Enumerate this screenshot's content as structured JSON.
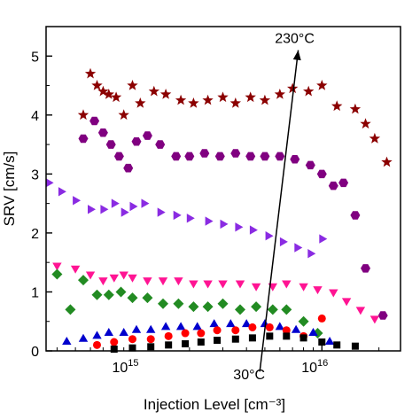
{
  "chart_data": {
    "type": "scatter",
    "xlabel": "Injection Level [cm⁻³]",
    "ylabel": "SRV [cm/s]",
    "xscale": "log",
    "xlim": [
      350000000000000.0,
      2.6e+16
    ],
    "ylim": [
      0,
      5.5
    ],
    "grid": false,
    "legend": "none",
    "x_ticks": [
      {
        "value": 1000000000000000.0,
        "label_base": "10",
        "label_exp": "15"
      },
      {
        "value": 1e+16,
        "label_base": "10",
        "label_exp": "16"
      }
    ],
    "y_ticks": [
      0,
      1,
      2,
      3,
      4,
      5
    ],
    "annotations": {
      "high": "230°C",
      "low": "30°C",
      "arrow_from": {
        "x": 4700000000000000.0,
        "y": -0.35
      },
      "arrow_to": {
        "x": 7500000000000000.0,
        "y": 5.1
      }
    },
    "series": [
      {
        "marker": "star",
        "color": "#8b0000",
        "x": [
          550000000000000.0,
          600000000000000.0,
          650000000000000.0,
          700000000000000.0,
          750000000000000.0,
          820000000000000.0,
          900000000000000.0,
          1000000000000000.0,
          1100000000000000.0,
          1300000000000000.0,
          1500000000000000.0,
          1800000000000000.0,
          2100000000000000.0,
          2500000000000000.0,
          3000000000000000.0,
          3500000000000000.0,
          4200000000000000.0,
          5000000000000000.0,
          6000000000000000.0,
          7000000000000000.0,
          8500000000000000.0,
          1e+16,
          1.2e+16,
          1.5e+16,
          1.7e+16,
          1.9e+16,
          2.2e+16
        ],
        "y": [
          4.0,
          4.7,
          4.5,
          4.4,
          4.35,
          4.3,
          4.0,
          4.5,
          4.2,
          4.4,
          4.35,
          4.25,
          4.2,
          4.25,
          4.3,
          4.2,
          4.3,
          4.25,
          4.35,
          4.45,
          4.4,
          4.5,
          4.15,
          4.1,
          3.85,
          3.6,
          3.2
        ]
      },
      {
        "marker": "hexagon",
        "color": "#800080",
        "x": [
          550000000000000.0,
          630000000000000.0,
          700000000000000.0,
          770000000000000.0,
          850000000000000.0,
          950000000000000.0,
          1050000000000000.0,
          1200000000000000.0,
          1400000000000000.0,
          1700000000000000.0,
          2000000000000000.0,
          2400000000000000.0,
          2900000000000000.0,
          3500000000000000.0,
          4200000000000000.0,
          5000000000000000.0,
          6000000000000000.0,
          7200000000000000.0,
          8700000000000000.0,
          1e+16,
          1.15e+16,
          1.3e+16,
          1.5e+16,
          1.7e+16,
          2.1e+16
        ],
        "y": [
          3.6,
          3.9,
          3.7,
          3.5,
          3.3,
          3.1,
          3.55,
          3.65,
          3.5,
          3.3,
          3.3,
          3.35,
          3.3,
          3.35,
          3.3,
          3.3,
          3.3,
          3.25,
          3.15,
          3.0,
          2.8,
          2.85,
          2.3,
          1.4,
          0.6
        ]
      },
      {
        "marker": "triangle-right",
        "color": "#8a2be2",
        "x": [
          360000000000000.0,
          420000000000000.0,
          500000000000000.0,
          600000000000000.0,
          700000000000000.0,
          800000000000000.0,
          900000000000000.0,
          1000000000000000.0,
          1150000000000000.0,
          1400000000000000.0,
          1700000000000000.0,
          2000000000000000.0,
          2500000000000000.0,
          3000000000000000.0,
          3600000000000000.0,
          4300000000000000.0,
          5200000000000000.0,
          6200000000000000.0,
          7400000000000000.0,
          8700000000000000.0,
          1e+16
        ],
        "y": [
          2.85,
          2.7,
          2.55,
          2.4,
          2.4,
          2.5,
          2.35,
          2.45,
          2.5,
          2.35,
          2.3,
          2.25,
          2.2,
          2.15,
          2.1,
          2.05,
          1.95,
          1.85,
          1.75,
          1.65,
          1.9
        ]
      },
      {
        "marker": "triangle-down",
        "color": "#ff1493",
        "x": [
          400000000000000.0,
          500000000000000.0,
          600000000000000.0,
          700000000000000.0,
          800000000000000.0,
          900000000000000.0,
          1000000000000000.0,
          1200000000000000.0,
          1450000000000000.0,
          1750000000000000.0,
          2100000000000000.0,
          2500000000000000.0,
          3000000000000000.0,
          3700000000000000.0,
          4500000000000000.0,
          5500000000000000.0,
          6500000000000000.0,
          8000000000000000.0,
          9500000000000000.0,
          1.15e+16,
          1.35e+16,
          1.6e+16,
          1.9e+16
        ],
        "y": [
          1.45,
          1.4,
          1.3,
          1.2,
          1.25,
          1.3,
          1.25,
          1.2,
          1.2,
          1.2,
          1.15,
          1.15,
          1.15,
          1.15,
          1.1,
          1.1,
          1.15,
          1.1,
          1.05,
          1.0,
          0.85,
          0.7,
          0.55
        ]
      },
      {
        "marker": "diamond",
        "color": "#228b22",
        "x": [
          400000000000000.0,
          470000000000000.0,
          550000000000000.0,
          650000000000000.0,
          750000000000000.0,
          870000000000000.0,
          1000000000000000.0,
          1200000000000000.0,
          1450000000000000.0,
          1750000000000000.0,
          2100000000000000.0,
          2500000000000000.0,
          3000000000000000.0,
          3700000000000000.0,
          4500000000000000.0,
          5500000000000000.0,
          6500000000000000.0,
          8000000000000000.0,
          9500000000000000.0
        ],
        "y": [
          1.3,
          0.7,
          1.2,
          0.95,
          0.95,
          1.0,
          0.9,
          0.9,
          0.8,
          0.8,
          0.75,
          0.75,
          0.8,
          0.7,
          0.75,
          0.7,
          0.7,
          0.5,
          0.3
        ]
      },
      {
        "marker": "triangle-up",
        "color": "#0000cd",
        "x": [
          450000000000000.0,
          550000000000000.0,
          650000000000000.0,
          750000000000000.0,
          900000000000000.0,
          1050000000000000.0,
          1250000000000000.0,
          1500000000000000.0,
          1800000000000000.0,
          2200000000000000.0,
          2700000000000000.0,
          3300000000000000.0,
          4000000000000000.0,
          5000000000000000.0,
          6000000000000000.0,
          7300000000000000.0,
          9000000000000000.0,
          1.1e+16
        ],
        "y": [
          0.15,
          0.2,
          0.25,
          0.3,
          0.3,
          0.35,
          0.35,
          0.4,
          0.4,
          0.4,
          0.45,
          0.45,
          0.45,
          0.45,
          0.4,
          0.35,
          0.3,
          0.15
        ]
      },
      {
        "marker": "circle",
        "color": "#ff0000",
        "x": [
          650000000000000.0,
          800000000000000.0,
          1000000000000000.0,
          1250000000000000.0,
          1550000000000000.0,
          1900000000000000.0,
          2300000000000000.0,
          2800000000000000.0,
          3500000000000000.0,
          4300000000000000.0,
          5300000000000000.0,
          6500000000000000.0,
          8000000000000000.0,
          1e+16
        ],
        "y": [
          0.1,
          0.15,
          0.2,
          0.2,
          0.25,
          0.3,
          0.3,
          0.35,
          0.35,
          0.4,
          0.4,
          0.35,
          0.25,
          0.55
        ]
      },
      {
        "marker": "square",
        "color": "#000000",
        "x": [
          800000000000000.0,
          1000000000000000.0,
          1250000000000000.0,
          1550000000000000.0,
          1900000000000000.0,
          2300000000000000.0,
          2800000000000000.0,
          3500000000000000.0,
          4300000000000000.0,
          5300000000000000.0,
          6500000000000000.0,
          8000000000000000.0,
          1e+16,
          1.2e+16,
          1.5e+16
        ],
        "y": [
          0.03,
          0.05,
          0.07,
          0.1,
          0.12,
          0.15,
          0.18,
          0.2,
          0.22,
          0.25,
          0.25,
          0.22,
          0.15,
          0.1,
          0.08
        ]
      }
    ]
  }
}
